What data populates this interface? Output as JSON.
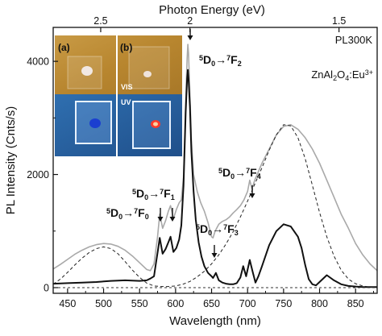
{
  "chart_data": {
    "type": "line",
    "xlabel": "Wavelength (nm)",
    "ylabel": "PL Intensity (Cnts/s)",
    "top_xlabel": "Photon Energy (eV)",
    "xlim": [
      430,
      880
    ],
    "ylim": [
      -100,
      4600
    ],
    "x_ticks": [
      450,
      500,
      550,
      600,
      650,
      700,
      750,
      800,
      850
    ],
    "y_ticks": [
      0,
      2000,
      4000
    ],
    "top_ticks": [
      {
        "label": "2.5",
        "wavelength": 496
      },
      {
        "label": "2",
        "wavelength": 620
      },
      {
        "label": "1.5",
        "wavelength": 827
      }
    ],
    "sample_label": "PL300K",
    "material_label": "ZnAl",
    "material_sub": "2",
    "material_mid": "O",
    "material_sub2": "4",
    "material_mid2": ":Eu",
    "material_sup": "3+",
    "transitions": [
      {
        "pre": "5",
        "d": "D",
        "dsub": "0",
        "arrow": "→",
        "post": "7",
        "f": "F",
        "fsub": "0",
        "peak": 578
      },
      {
        "pre": "5",
        "d": "D",
        "dsub": "0",
        "arrow": "→",
        "post": "7",
        "f": "F",
        "fsub": "1",
        "peak": 593
      },
      {
        "pre": "5",
        "d": "D",
        "dsub": "0",
        "arrow": "→",
        "post": "7",
        "f": "F",
        "fsub": "2",
        "peak": 617
      },
      {
        "pre": "5",
        "d": "D",
        "dsub": "0",
        "arrow": "→",
        "post": "7",
        "f": "F",
        "fsub": "3",
        "peak": 652
      },
      {
        "pre": "5",
        "d": "D",
        "dsub": "0",
        "arrow": "→",
        "post": "7",
        "f": "F",
        "fsub": "4",
        "peak": 703
      }
    ],
    "inset": {
      "labels": [
        "(a)",
        "(b)"
      ],
      "vis_label": "VIS",
      "uv_label": "UV"
    },
    "series": [
      {
        "style": "solid-gray",
        "color": "#a9a9a9",
        "x": [
          430,
          440,
          450,
          460,
          470,
          480,
          490,
          500,
          510,
          520,
          530,
          540,
          550,
          560,
          565,
          570,
          575,
          578,
          582,
          586,
          590,
          593,
          597,
          601,
          605,
          608,
          611,
          614,
          616,
          617,
          618,
          620,
          622,
          625,
          630,
          635,
          640,
          645,
          650,
          652,
          655,
          660,
          665,
          670,
          675,
          680,
          685,
          690,
          695,
          700,
          703,
          706,
          710,
          715,
          720,
          730,
          740,
          750,
          760,
          770,
          780,
          790,
          800,
          810,
          820,
          830,
          840,
          850,
          860,
          870,
          880
        ],
        "y": [
          330,
          410,
          500,
          590,
          660,
          720,
          760,
          780,
          770,
          730,
          660,
          560,
          440,
          320,
          300,
          420,
          900,
          1300,
          1050,
          1180,
          1350,
          1450,
          1220,
          1380,
          1500,
          1550,
          1950,
          3300,
          4050,
          4300,
          4150,
          3400,
          2600,
          2000,
          1700,
          1500,
          1350,
          1150,
          900,
          880,
          1000,
          1120,
          1170,
          1200,
          1250,
          1320,
          1380,
          1450,
          1550,
          1700,
          1900,
          1750,
          1900,
          2050,
          2200,
          2450,
          2700,
          2850,
          2880,
          2800,
          2650,
          2450,
          2200,
          1900,
          1600,
          1300,
          1050,
          780,
          580,
          420,
          300
        ]
      },
      {
        "style": "solid-black",
        "color": "#111111",
        "x": [
          430,
          450,
          470,
          490,
          510,
          530,
          550,
          560,
          565,
          570,
          573,
          576,
          578,
          582,
          586,
          590,
          593,
          597,
          601,
          605,
          608,
          611,
          614,
          616,
          617,
          618,
          620,
          622,
          625,
          628,
          632,
          636,
          640,
          645,
          650,
          652,
          656,
          660,
          665,
          670,
          675,
          680,
          685,
          690,
          694,
          698,
          703,
          707,
          711,
          715,
          720,
          730,
          740,
          750,
          760,
          770,
          775,
          780,
          785,
          790,
          795,
          800,
          810,
          820,
          830,
          840,
          850,
          860,
          870,
          880
        ],
        "y": [
          70,
          80,
          90,
          100,
          120,
          130,
          120,
          130,
          160,
          200,
          450,
          700,
          880,
          600,
          680,
          800,
          900,
          630,
          700,
          850,
          1100,
          1800,
          3100,
          3700,
          3850,
          3700,
          3200,
          2400,
          1700,
          1200,
          800,
          550,
          380,
          260,
          200,
          170,
          260,
          130,
          90,
          70,
          60,
          60,
          80,
          180,
          380,
          200,
          490,
          280,
          90,
          200,
          380,
          750,
          1000,
          1120,
          1080,
          900,
          700,
          400,
          150,
          60,
          40,
          100,
          220,
          130,
          60,
          30,
          20,
          10,
          10,
          10
        ]
      },
      {
        "style": "dashed-black",
        "color": "#222222",
        "x": [
          430,
          440,
          450,
          460,
          470,
          480,
          490,
          500,
          510,
          520,
          530,
          540,
          550,
          560,
          570,
          580,
          590,
          600,
          610,
          620,
          630,
          640,
          650,
          660,
          670,
          680,
          690,
          700,
          710,
          720,
          730,
          740,
          750,
          760,
          770,
          780,
          790,
          800,
          810,
          820,
          830,
          840,
          850,
          860,
          870,
          880
        ],
        "y": [
          60,
          150,
          270,
          400,
          520,
          620,
          690,
          720,
          690,
          600,
          460,
          310,
          180,
          80,
          30,
          20,
          20,
          30,
          60,
          110,
          190,
          290,
          420,
          580,
          770,
          990,
          1250,
          1530,
          1830,
          2120,
          2430,
          2700,
          2880,
          2860,
          2650,
          2280,
          1810,
          1330,
          900,
          560,
          310,
          150,
          70,
          30,
          10,
          0
        ]
      },
      {
        "style": "baseline-dashed",
        "color": "#333333",
        "x": [
          430,
          880
        ],
        "y": [
          0,
          0
        ]
      }
    ]
  }
}
